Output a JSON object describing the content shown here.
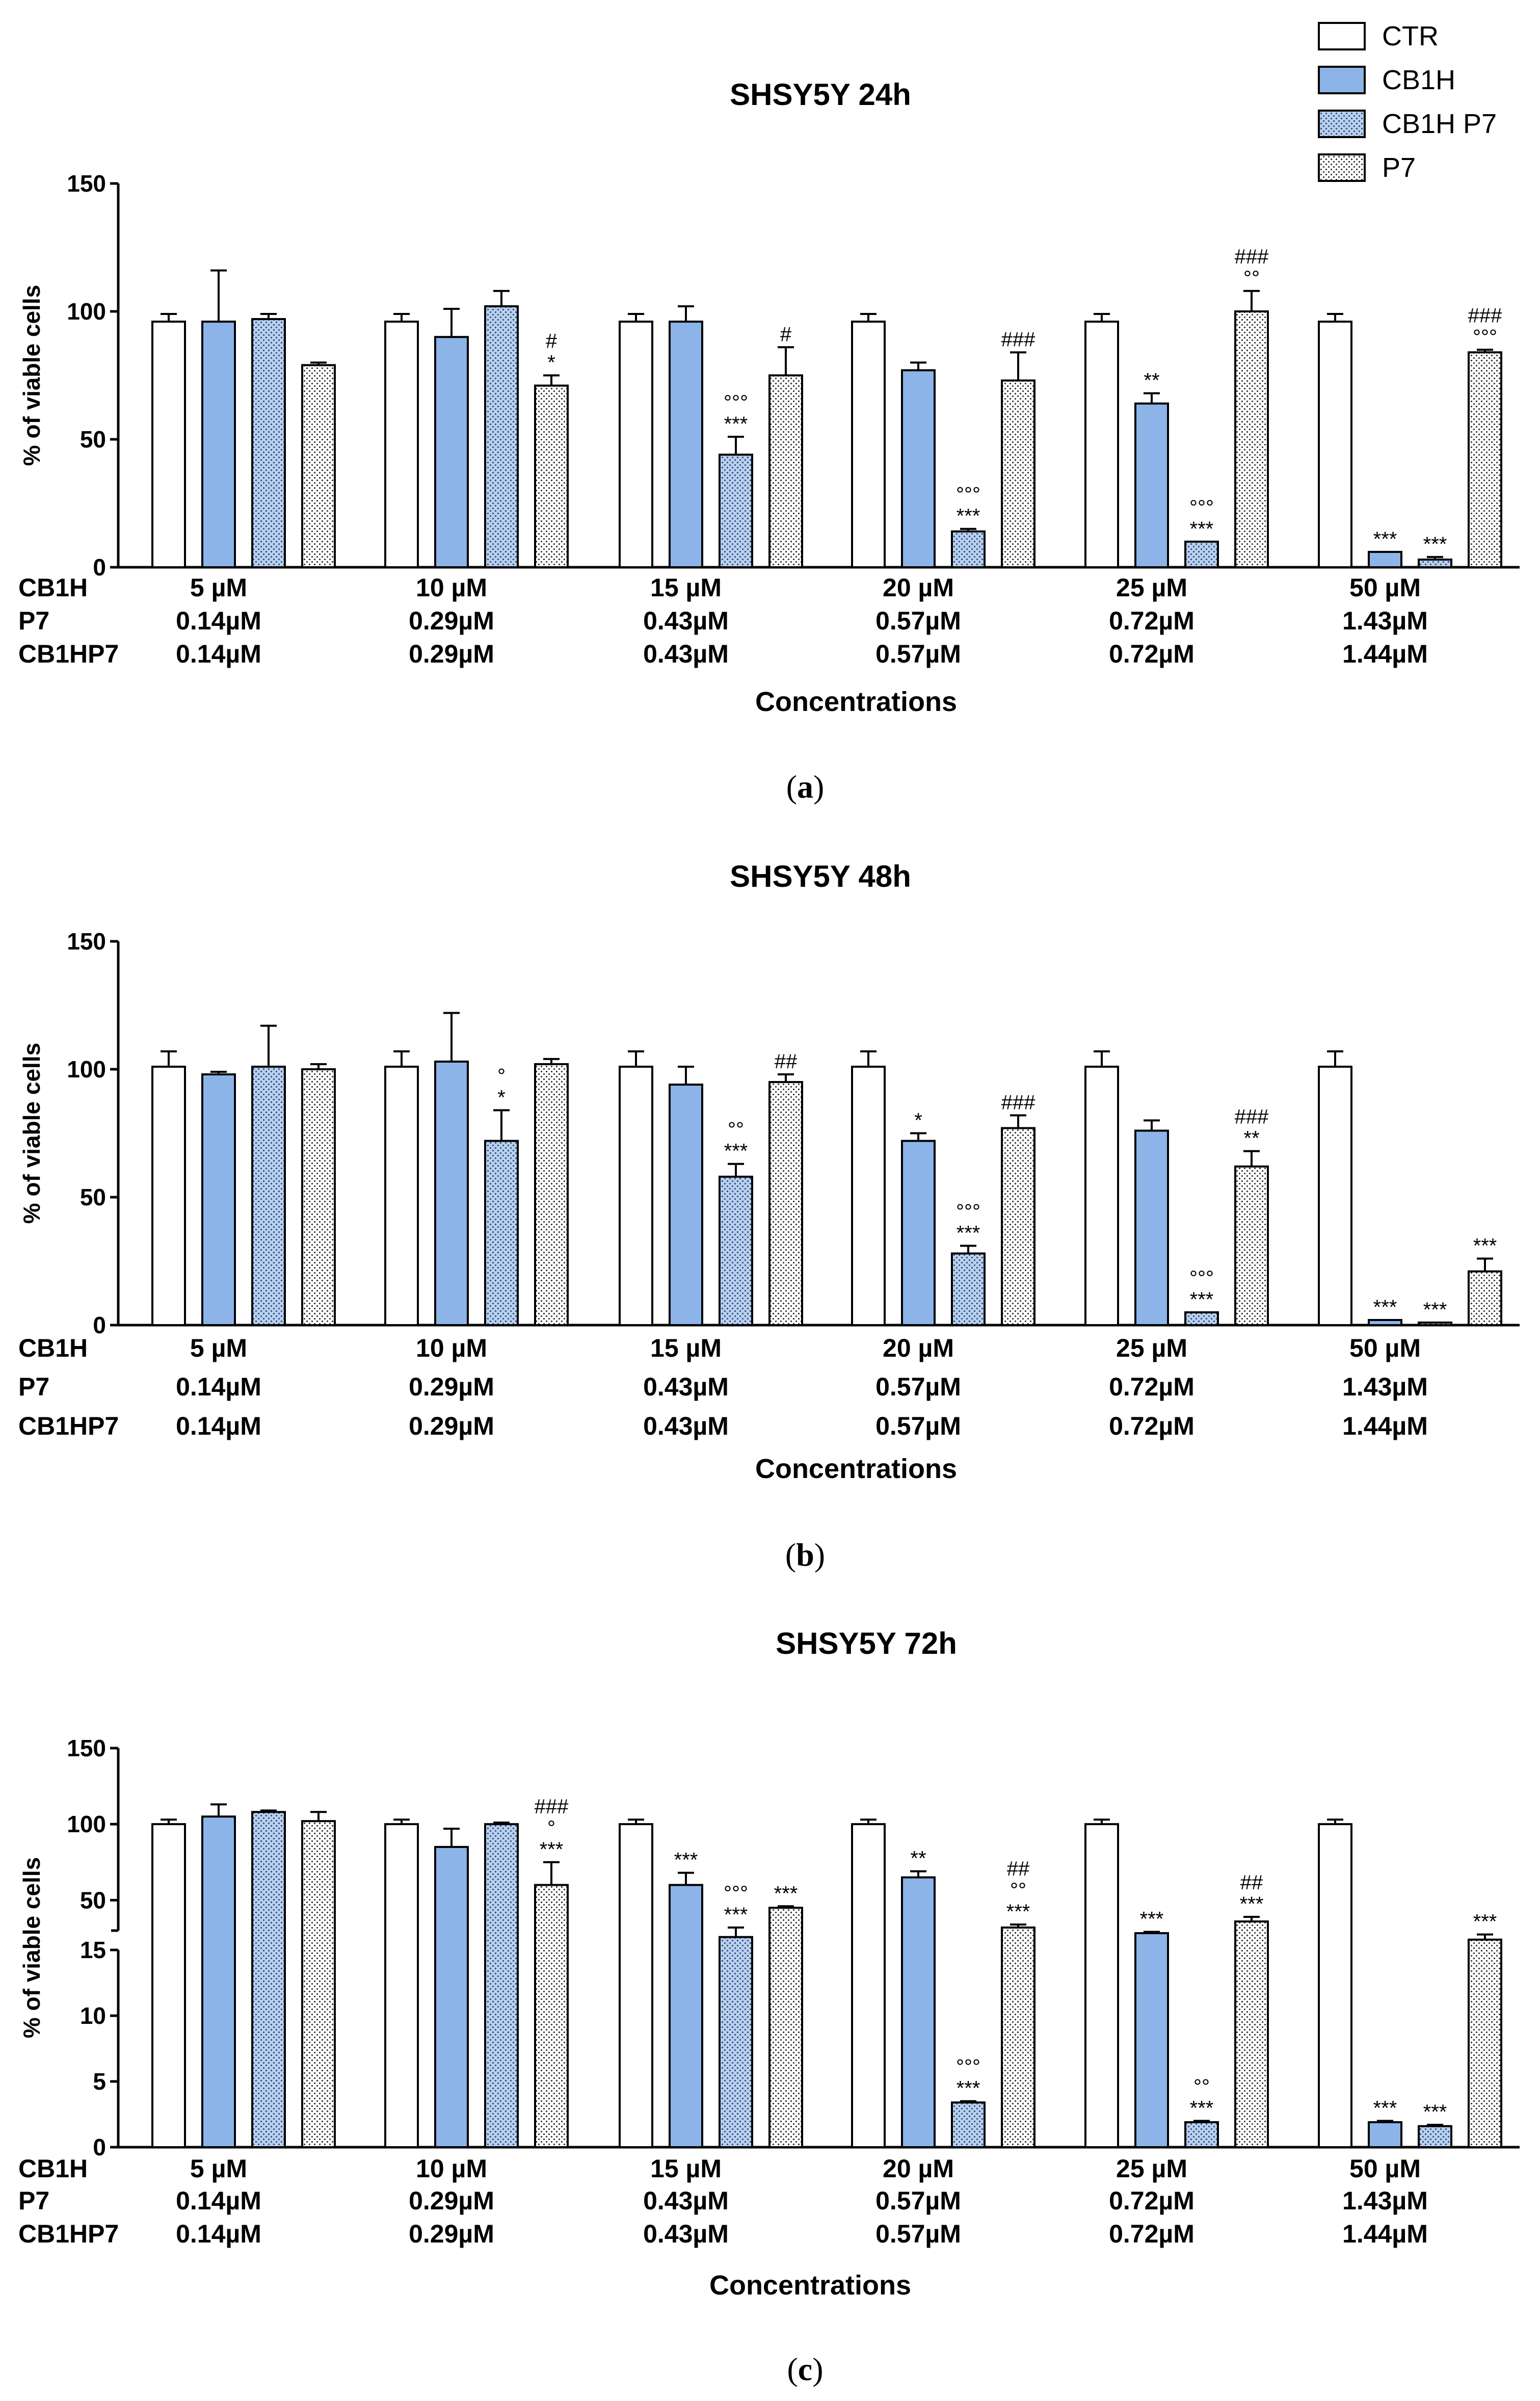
{
  "legend": [
    {
      "name": "CTR",
      "fill": "#ffffff",
      "pattern": false
    },
    {
      "name": "CB1H",
      "fill": "#8db4e8",
      "pattern": false
    },
    {
      "name": "CB1H P7",
      "fill": "#b8d0ee",
      "pattern": true
    },
    {
      "name": " P7",
      "fill": "#ffffff",
      "pattern": true
    }
  ],
  "colors": {
    "ctr": "#ffffff",
    "cb1h": "#8db4e8",
    "cb1hp7": "#b8d0ee",
    "p7": "#ffffff",
    "axis": "#000000",
    "dots": "#333333"
  },
  "chart_data": [
    {
      "type": "bar",
      "title": "SHSY5Y 24h",
      "caption": "a",
      "ylabel": "% of viable cells",
      "xlabel": "Concentrations",
      "ylim": [
        0,
        150
      ],
      "yticks": [
        0,
        50,
        100,
        150
      ],
      "categories": [
        "5 µM",
        "10 µM",
        "15 µM",
        "20 µM",
        "25 µM",
        "50 µM"
      ],
      "row_labels": [
        "CB1H",
        "P7",
        "CB1HP7"
      ],
      "rows": [
        [
          "5 µM",
          "10 µM",
          "15 µM",
          "20 µM",
          "25 µM",
          "50 µM"
        ],
        [
          "0.14µM",
          "0.29µM",
          "0.43µM",
          "0.57µM",
          "0.72µM",
          "1.43µM"
        ],
        [
          "0.14µM",
          "0.29µM",
          "0.43µM",
          "0.57µM",
          "0.72µM",
          "1.44µM"
        ]
      ],
      "series": [
        {
          "name": "CTR",
          "values": [
            96,
            96,
            96,
            96,
            96,
            96
          ],
          "errors": [
            3,
            3,
            3,
            3,
            3,
            3
          ],
          "annotations": [
            "",
            "",
            "",
            "",
            "",
            ""
          ]
        },
        {
          "name": "CB1H",
          "values": [
            96,
            90,
            96,
            77,
            64,
            6
          ],
          "errors": [
            20,
            11,
            6,
            3,
            4,
            0
          ],
          "annotations": [
            "",
            "",
            "",
            "",
            "**",
            "***"
          ]
        },
        {
          "name": "CB1H P7",
          "values": [
            97,
            102,
            44,
            14,
            10,
            3
          ],
          "errors": [
            2,
            6,
            7,
            1,
            0,
            1
          ],
          "annotations": [
            "",
            "",
            "°°°\n***",
            "°°°\n***",
            "°°°\n***",
            "***"
          ]
        },
        {
          "name": " P7",
          "values": [
            79,
            71,
            75,
            73,
            100,
            84
          ],
          "errors": [
            1,
            4,
            11,
            11,
            8,
            1
          ],
          "annotations": [
            "",
            "#\n*",
            "#",
            "###",
            "###\n°°",
            "###\n°°°"
          ]
        }
      ]
    },
    {
      "type": "bar",
      "title": "SHSY5Y 48h",
      "caption": "b",
      "ylabel": "% of viable cells",
      "xlabel": "Concentrations",
      "ylim": [
        0,
        150
      ],
      "yticks": [
        0,
        50,
        100,
        150
      ],
      "categories": [
        "5 µM",
        "10 µM",
        "15 µM",
        "20 µM",
        "25 µM",
        "50 µM"
      ],
      "row_labels": [
        "CB1H",
        "P7",
        "CB1HP7"
      ],
      "rows": [
        [
          "5 µM",
          "10 µM",
          "15 µM",
          "20 µM",
          "25 µM",
          "50 µM"
        ],
        [
          "0.14µM",
          "0.29µM",
          "0.43µM",
          "0.57µM",
          "0.72µM",
          "1.43µM"
        ],
        [
          "0.14µM",
          "0.29µM",
          "0.43µM",
          "0.57µM",
          "0.72µM",
          "1.44µM"
        ]
      ],
      "series": [
        {
          "name": "CTR",
          "values": [
            101,
            101,
            101,
            101,
            101,
            101
          ],
          "errors": [
            6,
            6,
            6,
            6,
            6,
            6
          ],
          "annotations": [
            "",
            "",
            "",
            "",
            "",
            ""
          ]
        },
        {
          "name": "CB1H",
          "values": [
            98,
            103,
            94,
            72,
            76,
            2
          ],
          "errors": [
            1,
            19,
            7,
            3,
            4,
            0
          ],
          "annotations": [
            "",
            "",
            "",
            "*",
            "",
            "***"
          ]
        },
        {
          "name": "CB1H P7",
          "values": [
            101,
            72,
            58,
            28,
            5,
            1
          ],
          "errors": [
            16,
            12,
            5,
            3,
            0,
            0
          ],
          "annotations": [
            "",
            "°\n*",
            "°°\n***",
            "°°°\n***",
            "°°°\n***",
            "***"
          ]
        },
        {
          "name": " P7",
          "values": [
            100,
            102,
            95,
            77,
            62,
            21
          ],
          "errors": [
            2,
            2,
            3,
            5,
            6,
            5
          ],
          "annotations": [
            "",
            "",
            "##",
            "###",
            "###\n**",
            "***"
          ]
        }
      ]
    },
    {
      "type": "bar",
      "title": "SHSY5Y 72h",
      "caption": "c",
      "ylabel": "% of viable cells",
      "xlabel": "Concentrations",
      "ylim": [
        0,
        150
      ],
      "yticks_upper": [
        50,
        100,
        150
      ],
      "yticks_lower": [
        0,
        5,
        10,
        15
      ],
      "axis_break": [
        15,
        30
      ],
      "categories": [
        "5 µM",
        "10 µM",
        "15 µM",
        "20 µM",
        "25 µM",
        "50 µM"
      ],
      "row_labels": [
        "CB1H",
        "P7",
        "CB1HP7"
      ],
      "rows": [
        [
          "5 µM",
          "10 µM",
          "15 µM",
          "20 µM",
          "25 µM",
          "50 µM"
        ],
        [
          "0.14µM",
          "0.29µM",
          "0.43µM",
          "0.57µM",
          "0.72µM",
          "1.43µM"
        ],
        [
          "0.14µM",
          "0.29µM",
          "0.43µM",
          "0.57µM",
          "0.72µM",
          "1.44µM"
        ]
      ],
      "series": [
        {
          "name": "CTR",
          "values": [
            100,
            100,
            100,
            100,
            100,
            100
          ],
          "errors": [
            3,
            3,
            3,
            3,
            3,
            3
          ],
          "annotations": [
            "",
            "",
            "",
            "",
            "",
            ""
          ]
        },
        {
          "name": "CB1H",
          "values": [
            105,
            85,
            60,
            65,
            28,
            1.9
          ],
          "errors": [
            8,
            12,
            8,
            4,
            1,
            0.1
          ],
          "annotations": [
            "",
            "",
            "***",
            "**",
            "***",
            "***"
          ]
        },
        {
          "name": "CB1H P7",
          "values": [
            108,
            100,
            25,
            3.4,
            1.9,
            1.6
          ],
          "errors": [
            1,
            1,
            7,
            0.1,
            0.1,
            0.1
          ],
          "annotations": [
            "",
            "",
            "°°°\n***",
            "°°°\n***",
            "°°\n***",
            "***"
          ]
        },
        {
          "name": " P7",
          "values": [
            102,
            60,
            45,
            32,
            36,
            23
          ],
          "errors": [
            6,
            15,
            1,
            2,
            3,
            4
          ],
          "annotations": [
            "",
            "###\n°\n***",
            "***",
            "##\n°°\n***",
            "##\n***",
            "***"
          ]
        }
      ]
    }
  ]
}
